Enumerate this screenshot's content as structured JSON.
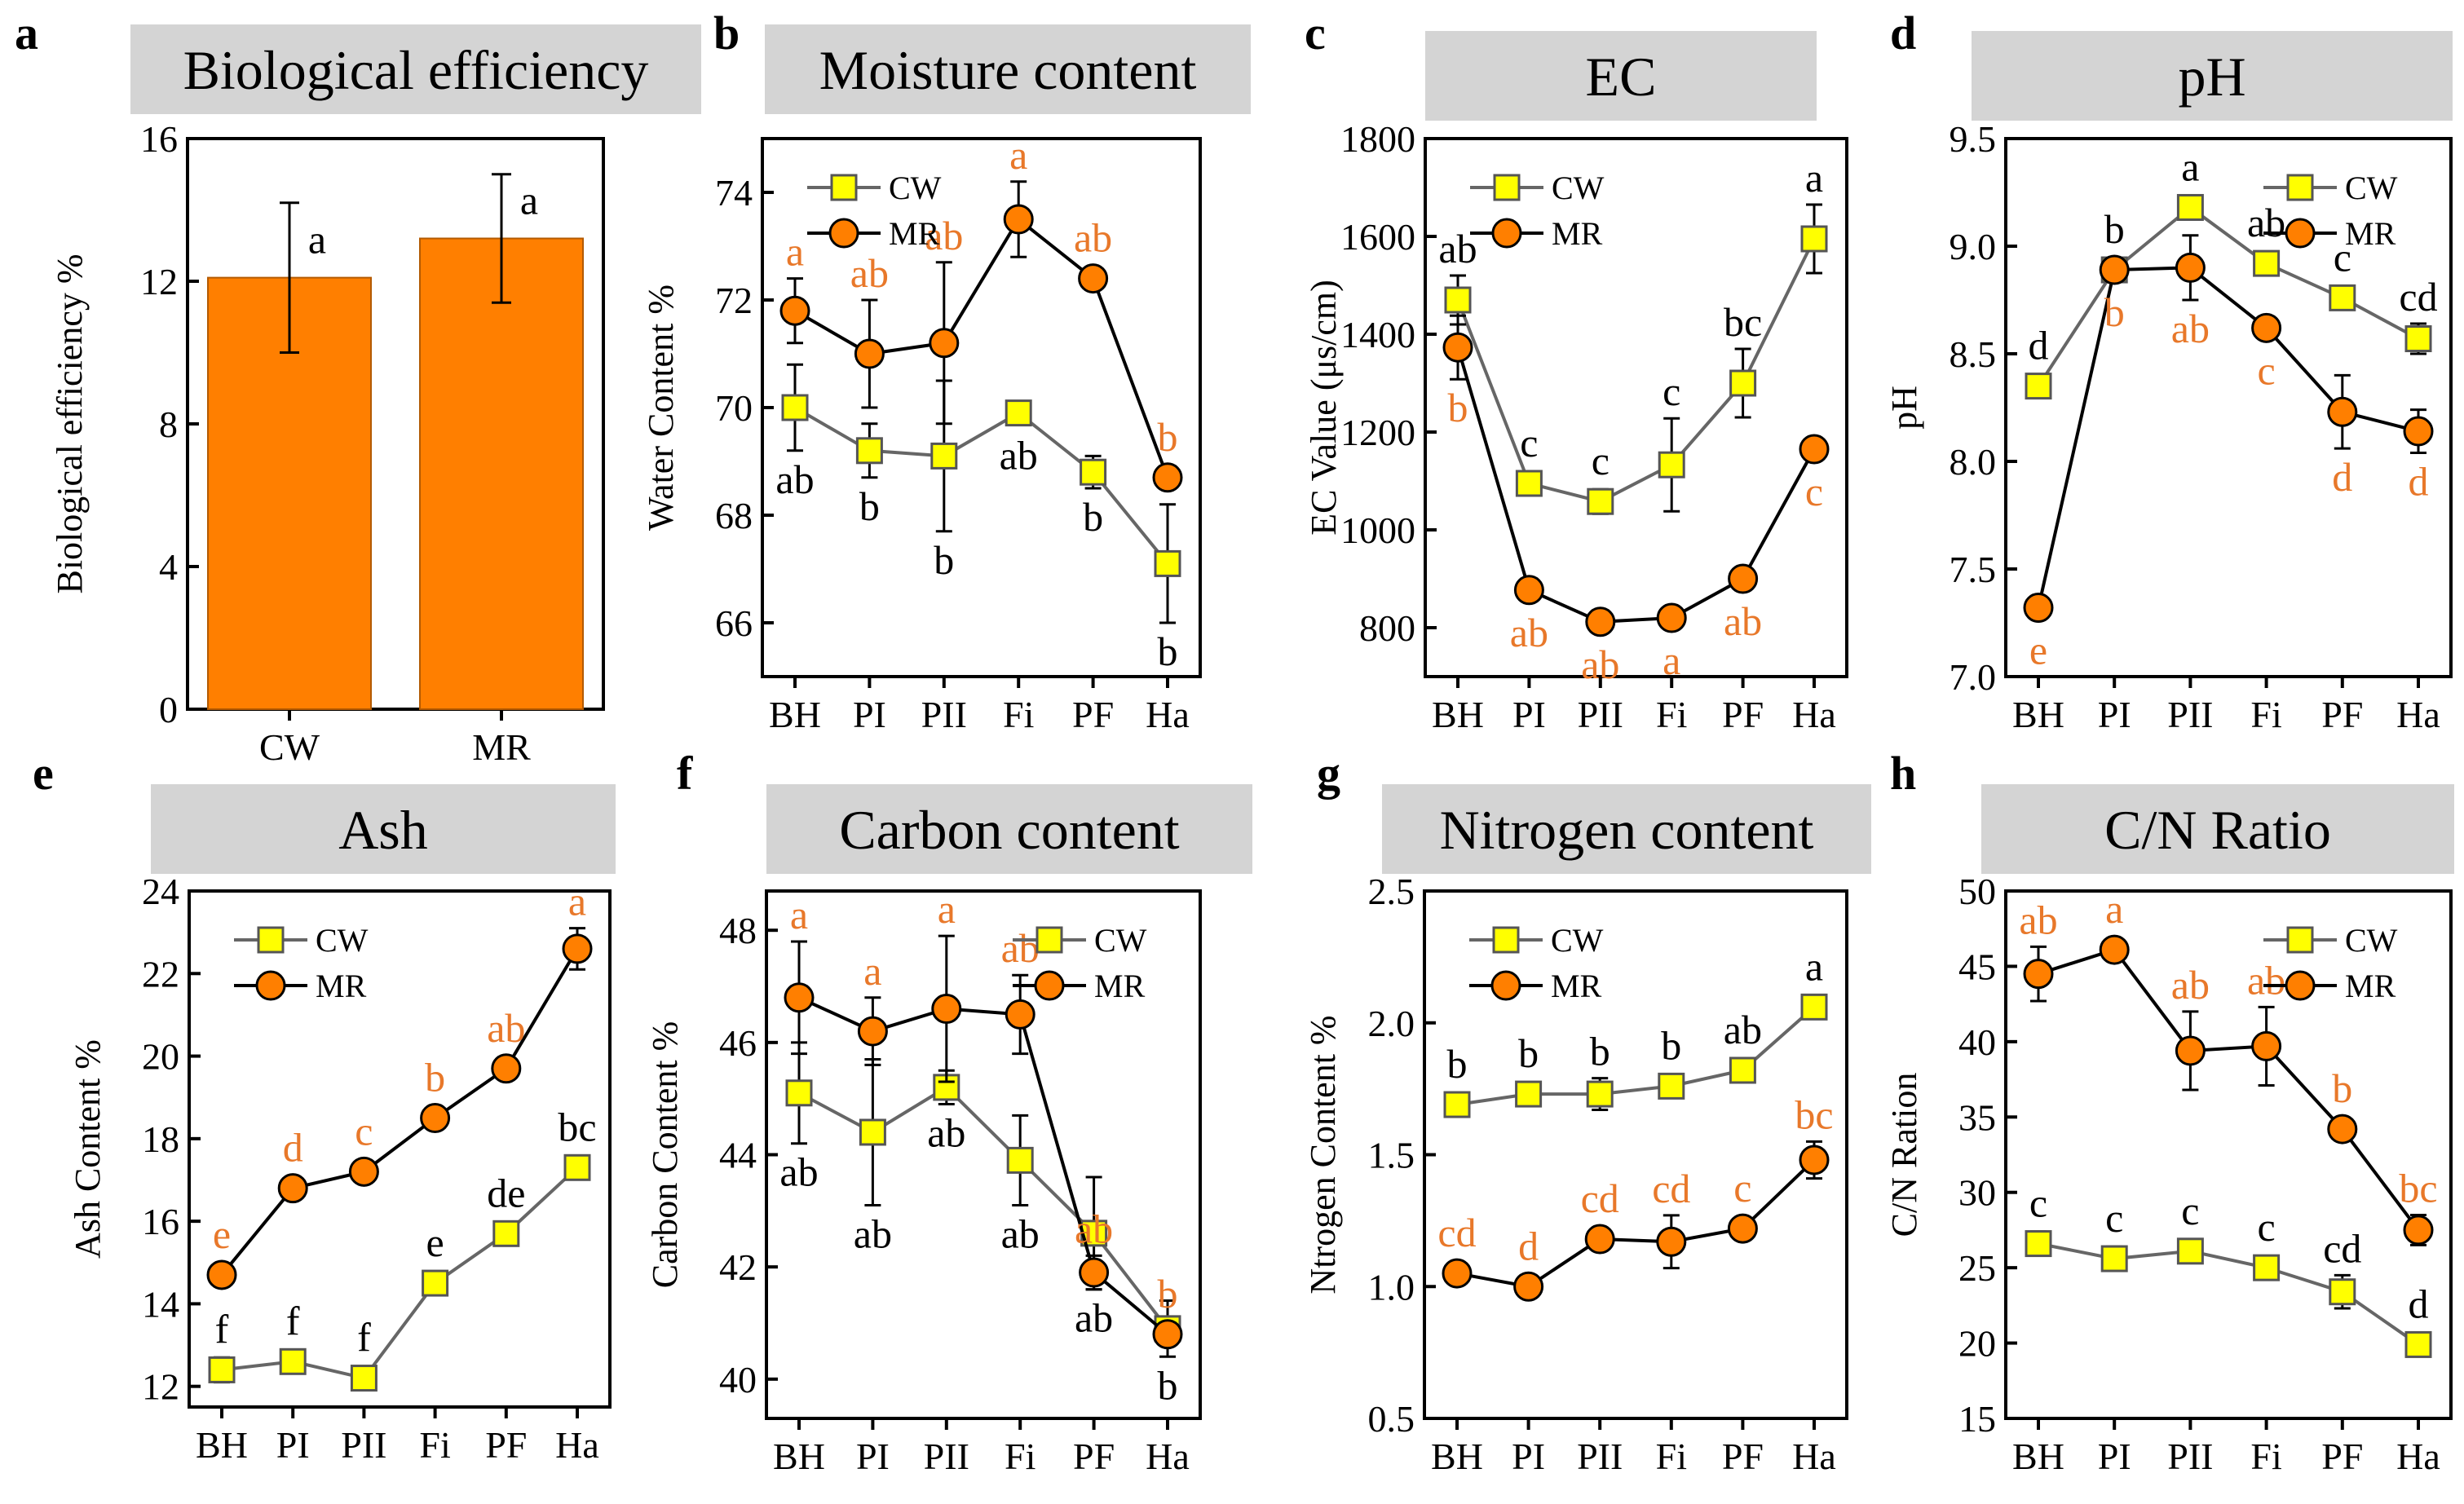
{
  "colors": {
    "cw_fill": "#ffff00",
    "cw_line": "#666666",
    "mr_fill": "#ff7f00",
    "mr_line": "#000000",
    "mr_letter": "#e8782a",
    "cw_letter": "#000000",
    "title_bg": "#d4d4d4"
  },
  "chart_data": [
    {
      "id": "a",
      "panel_label": "a",
      "type": "bar",
      "title": "Biological efficiency",
      "ylabel": "Biological efficiency %",
      "categories": [
        "CW",
        "MR"
      ],
      "values": [
        12.1,
        13.2
      ],
      "errors": [
        2.1,
        1.8
      ],
      "letters": [
        "a",
        "a"
      ],
      "ylim": [
        0,
        16
      ],
      "yticks": [
        "0",
        "4",
        "8",
        "12",
        "16"
      ]
    },
    {
      "id": "b",
      "panel_label": "b",
      "type": "line",
      "title": "Moisture content",
      "ylabel": "Water Content %",
      "categories": [
        "BH",
        "PI",
        "PII",
        "Fi",
        "PF",
        "Ha"
      ],
      "ylim": [
        65,
        75
      ],
      "yticks": [
        "66",
        "68",
        "70",
        "72",
        "74"
      ],
      "legend": [
        "CW",
        "MR"
      ],
      "series": [
        {
          "name": "CW",
          "values": [
            70.0,
            69.2,
            69.1,
            69.9,
            68.8,
            67.1
          ],
          "errors": [
            0.8,
            0.5,
            1.4,
            0.1,
            0.3,
            1.1
          ],
          "letters": [
            "ab",
            "b",
            "b",
            "ab",
            "b",
            "b"
          ]
        },
        {
          "name": "MR",
          "values": [
            71.8,
            71.0,
            71.2,
            73.5,
            72.4,
            68.7
          ],
          "errors": [
            0.6,
            1.0,
            1.5,
            0.7,
            0.1,
            0.1
          ],
          "letters": [
            "a",
            "ab",
            "ab",
            "a",
            "ab",
            "b"
          ]
        }
      ]
    },
    {
      "id": "c",
      "panel_label": "c",
      "type": "line",
      "title": "EC",
      "ylabel": "EC Value (μs/cm)",
      "categories": [
        "BH",
        "PI",
        "PII",
        "Fi",
        "PF",
        "Ha"
      ],
      "ylim": [
        700,
        1800
      ],
      "yticks": [
        "800",
        "1000",
        "1200",
        "1400",
        "1600",
        "1800"
      ],
      "legend": [
        "CW",
        "MR"
      ],
      "series": [
        {
          "name": "CW",
          "values": [
            1470,
            1095,
            1058,
            1133,
            1300,
            1595
          ],
          "errors": [
            50,
            20,
            25,
            95,
            70,
            70
          ],
          "letters": [
            "ab",
            "c",
            "c",
            "c",
            "bc",
            "a"
          ]
        },
        {
          "name": "MR",
          "values": [
            1373,
            877,
            812,
            820,
            900,
            1165
          ],
          "errors": [
            65,
            15,
            15,
            15,
            10,
            15
          ],
          "letters": [
            "b",
            "ab",
            "ab",
            "a",
            "ab",
            "c"
          ]
        }
      ]
    },
    {
      "id": "d",
      "panel_label": "d",
      "type": "line",
      "title": "pH",
      "ylabel": "pH",
      "categories": [
        "BH",
        "PI",
        "PII",
        "Fi",
        "PF",
        "Ha"
      ],
      "ylim": [
        7.0,
        9.5
      ],
      "yticks": [
        "7.0",
        "7.5",
        "8.0",
        "8.5",
        "9.0",
        "9.5"
      ],
      "legend": [
        "CW",
        "MR"
      ],
      "series": [
        {
          "name": "CW",
          "values": [
            8.35,
            8.89,
            9.18,
            8.92,
            8.76,
            8.57
          ],
          "errors": [
            0.03,
            0.04,
            0.04,
            0.03,
            0.04,
            0.07
          ],
          "letters": [
            "d",
            "b",
            "a",
            "ab",
            "c",
            "cd"
          ]
        },
        {
          "name": "MR",
          "values": [
            7.32,
            8.89,
            8.9,
            8.62,
            8.23,
            8.14
          ],
          "errors": [
            0.03,
            0.05,
            0.15,
            0.03,
            0.17,
            0.1
          ],
          "letters": [
            "e",
            "b",
            "ab",
            "c",
            "d",
            "d"
          ]
        }
      ]
    },
    {
      "id": "e",
      "panel_label": "e",
      "type": "line",
      "title": "Ash",
      "ylabel": "Ash Content %",
      "categories": [
        "BH",
        "PI",
        "PII",
        "Fi",
        "PF",
        "Ha"
      ],
      "ylim": [
        11.5,
        24
      ],
      "yticks": [
        "12",
        "14",
        "16",
        "18",
        "20",
        "22",
        "24"
      ],
      "legend": [
        "CW",
        "MR"
      ],
      "series": [
        {
          "name": "CW",
          "values": [
            12.4,
            12.6,
            12.2,
            14.5,
            15.7,
            17.3
          ],
          "errors": [
            0.3,
            0.2,
            0.2,
            0.15,
            0.15,
            0.1
          ],
          "letters": [
            "f",
            "f",
            "f",
            "e",
            "de",
            "bc"
          ]
        },
        {
          "name": "MR",
          "values": [
            14.7,
            16.8,
            17.2,
            18.5,
            19.7,
            22.6
          ],
          "errors": [
            0.1,
            0.1,
            0.1,
            0.1,
            0.1,
            0.5
          ],
          "letters": [
            "e",
            "d",
            "c",
            "b",
            "ab",
            "a"
          ]
        }
      ]
    },
    {
      "id": "f",
      "panel_label": "f",
      "type": "line",
      "title": "Carbon content",
      "ylabel": "Carbon Content %",
      "categories": [
        "BH",
        "PI",
        "PII",
        "Fi",
        "PF",
        "Ha"
      ],
      "ylim": [
        39.3,
        48.7
      ],
      "yticks": [
        "40",
        "42",
        "44",
        "46",
        "48"
      ],
      "legend": [
        "CW",
        "MR"
      ],
      "series": [
        {
          "name": "CW",
          "values": [
            45.1,
            44.4,
            45.2,
            43.9,
            42.6,
            40.9
          ],
          "errors": [
            0.9,
            1.3,
            0.3,
            0.8,
            1.0,
            0.5
          ],
          "letters": [
            "ab",
            "ab",
            "ab",
            "ab",
            "ab",
            "b"
          ]
        },
        {
          "name": "MR",
          "values": [
            46.8,
            46.2,
            46.6,
            46.5,
            41.9,
            40.8
          ],
          "errors": [
            1.0,
            0.6,
            1.3,
            0.7,
            0.3,
            0.2
          ],
          "letters": [
            "a",
            "a",
            "a",
            "ab",
            "ab",
            "b"
          ]
        }
      ]
    },
    {
      "id": "g",
      "panel_label": "g",
      "type": "line",
      "title": "Nitrogen content",
      "ylabel": "Ntrogen Content %",
      "categories": [
        "BH",
        "PI",
        "PII",
        "Fi",
        "PF",
        "Ha"
      ],
      "ylim": [
        0.5,
        2.5
      ],
      "yticks": [
        "0.5",
        "1.0",
        "1.5",
        "2.0",
        "2.5"
      ],
      "legend": [
        "CW",
        "MR"
      ],
      "series": [
        {
          "name": "CW",
          "values": [
            1.69,
            1.73,
            1.73,
            1.76,
            1.82,
            2.06
          ],
          "errors": [
            0.02,
            0.03,
            0.06,
            0.04,
            0.03,
            0.04
          ],
          "letters": [
            "b",
            "b",
            "b",
            "b",
            "ab",
            "a"
          ]
        },
        {
          "name": "MR",
          "values": [
            1.05,
            1.0,
            1.18,
            1.17,
            1.22,
            1.48
          ],
          "errors": [
            0.02,
            0.02,
            0.04,
            0.1,
            0.04,
            0.07
          ],
          "letters": [
            "cd",
            "d",
            "cd",
            "cd",
            "c",
            "bc"
          ]
        }
      ]
    },
    {
      "id": "h",
      "panel_label": "h",
      "type": "line",
      "title": "C/N Ratio",
      "ylabel": "C/N Ration",
      "categories": [
        "BH",
        "PI",
        "PII",
        "Fi",
        "PF",
        "Ha"
      ],
      "ylim": [
        15,
        50
      ],
      "yticks": [
        "15",
        "20",
        "25",
        "30",
        "35",
        "40",
        "45",
        "50"
      ],
      "legend": [
        "CW",
        "MR"
      ],
      "series": [
        {
          "name": "CW",
          "values": [
            26.6,
            25.6,
            26.1,
            25.0,
            23.4,
            19.9
          ],
          "errors": [
            0.8,
            0.8,
            0.5,
            0.5,
            1.1,
            0.4
          ],
          "letters": [
            "c",
            "c",
            "c",
            "c",
            "cd",
            "d"
          ]
        },
        {
          "name": "MR",
          "values": [
            44.5,
            46.1,
            39.4,
            39.7,
            34.2,
            27.5
          ],
          "errors": [
            1.8,
            0.5,
            2.6,
            2.6,
            0.6,
            1.0
          ],
          "letters": [
            "ab",
            "a",
            "ab",
            "ab",
            "b",
            "bc"
          ]
        }
      ]
    }
  ]
}
